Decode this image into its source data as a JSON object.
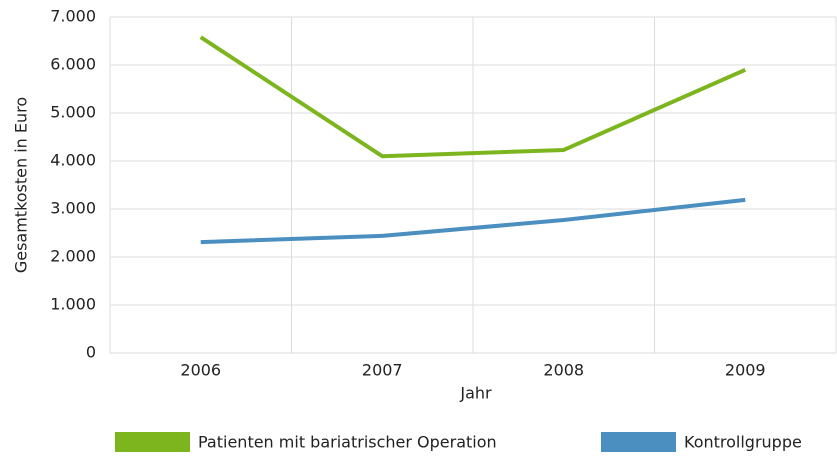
{
  "chart_data": {
    "type": "line",
    "categories": [
      "2006",
      "2007",
      "2008",
      "2009"
    ],
    "series": [
      {
        "name": "Patienten mit bariatrischer Operation",
        "color": "#7cb51e",
        "values": [
          6580,
          4100,
          4230,
          5900
        ]
      },
      {
        "name": "Kontrollgruppe",
        "color": "#4b8fc0",
        "values": [
          2310,
          2440,
          2770,
          3190
        ]
      }
    ],
    "xlabel": "Jahr",
    "ylabel": "Gesamtkosten in Euro",
    "ylim": [
      0,
      7000
    ],
    "yticks": [
      0,
      {
        "value": 1000,
        "label": "1.000"
      },
      {
        "value": 2000,
        "label": "2.000"
      },
      {
        "value": 3000,
        "label": "3.000"
      },
      {
        "value": 4000,
        "label": "4.000"
      },
      {
        "value": 5000,
        "label": "5.000"
      },
      {
        "value": 6000,
        "label": "6.000"
      },
      {
        "value": 7000,
        "label": "7.000"
      }
    ],
    "grid": true,
    "legend": "bottom"
  }
}
